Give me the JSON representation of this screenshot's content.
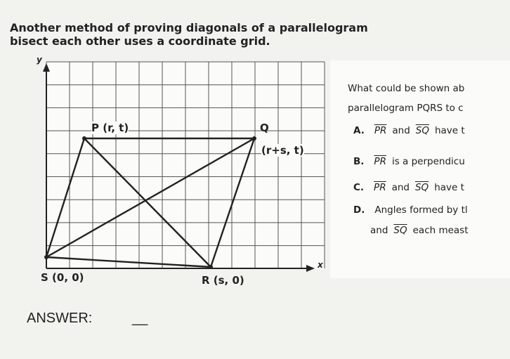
{
  "header": {
    "title_lines": [
      "Another method of proving diagonals of a parallelogram",
      "bisect each other uses a coordinate grid."
    ]
  },
  "graph": {
    "y_axis_label": "y",
    "x_axis_label": "x",
    "points": [
      "P (r, t)",
      "Q",
      "(r+s, t)",
      "S (0, 0)",
      "R (s, 0)"
    ]
  },
  "question": {
    "lines": [
      "What could be shown ab",
      "parallelogram PQRS to c"
    ],
    "options": [
      {
        "letter": "A.",
        "parts": [
          {
            "text": "PR",
            "overline": true
          },
          "and",
          {
            "text": "SQ",
            "overline": true
          },
          "have t"
        ]
      },
      {
        "letter": "B.",
        "parts": [
          {
            "text": "PR",
            "overline": true
          },
          "is a perpendicu"
        ]
      },
      {
        "letter": "C.",
        "parts": [
          {
            "text": "PR",
            "overline": true
          },
          "and",
          {
            "text": "SQ",
            "overline": true
          },
          "have t"
        ]
      },
      {
        "letter": "D.",
        "parts": [
          "Angles formed by tl"
        ],
        "continuation": [
          "and",
          {
            "text": "SQ",
            "overline": true
          },
          "each meast"
        ]
      }
    ]
  },
  "answer": {
    "label": "ANSWER:",
    "blank": "__"
  }
}
